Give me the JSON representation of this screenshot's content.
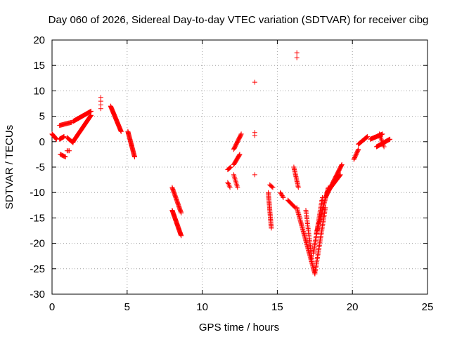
{
  "chart_data": {
    "type": "scatter",
    "title": "Day 060 of 2026, Sidereal Day-to-day VTEC variation (SDTVAR) for receiver cibg",
    "xlabel": "GPS time / hours",
    "ylabel": "SDTVAR / TECUs",
    "xlim": [
      0,
      25
    ],
    "ylim": [
      -30,
      20
    ],
    "xticks": [
      "0",
      "5",
      "10",
      "15",
      "20",
      "25"
    ],
    "yticks": [
      "-30",
      "-25",
      "-20",
      "-15",
      "-10",
      "-5",
      "0",
      "5",
      "10",
      "15",
      "20"
    ],
    "grid": true,
    "marker": "+",
    "color": "#ff0000",
    "segments": [
      {
        "x0": 0.0,
        "y0": 1.5,
        "x1": 0.3,
        "y1": 0.5,
        "n": 18
      },
      {
        "x0": 0.5,
        "y0": 0.5,
        "x1": 0.8,
        "y1": 1.0,
        "n": 12
      },
      {
        "x0": 0.5,
        "y0": 3.2,
        "x1": 1.3,
        "y1": 3.8,
        "n": 18
      },
      {
        "x0": 0.55,
        "y0": -2.5,
        "x1": 0.9,
        "y1": -3.0,
        "n": 8
      },
      {
        "x0": 1.0,
        "y0": 0.8,
        "x1": 1.4,
        "y1": -0.2,
        "n": 10
      },
      {
        "x0": 1.0,
        "y0": -1.8,
        "x1": 1.15,
        "y1": -1.8,
        "n": 3
      },
      {
        "x0": 1.4,
        "y0": 0.0,
        "x1": 2.6,
        "y1": 5.2,
        "n": 55
      },
      {
        "x0": 1.4,
        "y0": 4.0,
        "x1": 2.6,
        "y1": 6.0,
        "n": 45
      },
      {
        "x0": 3.25,
        "y0": 6.5,
        "x1": 3.25,
        "y1": 8.7,
        "n": 4
      },
      {
        "x0": 3.9,
        "y0": 7.0,
        "x1": 4.6,
        "y1": 2.0,
        "n": 45
      },
      {
        "x0": 5.05,
        "y0": 2.0,
        "x1": 5.5,
        "y1": -3.0,
        "n": 35
      },
      {
        "x0": 8.0,
        "y0": -9.0,
        "x1": 8.6,
        "y1": -14.0,
        "n": 30
      },
      {
        "x0": 8.0,
        "y0": -13.5,
        "x1": 8.6,
        "y1": -18.5,
        "n": 40
      },
      {
        "x0": 11.7,
        "y0": -5.5,
        "x1": 11.9,
        "y1": -5.0,
        "n": 6
      },
      {
        "x0": 11.7,
        "y0": -8.0,
        "x1": 11.85,
        "y1": -9.0,
        "n": 5
      },
      {
        "x0": 12.1,
        "y0": -1.5,
        "x1": 12.6,
        "y1": 1.5,
        "n": 20
      },
      {
        "x0": 12.1,
        "y0": -4.5,
        "x1": 12.5,
        "y1": -2.5,
        "n": 15
      },
      {
        "x0": 12.1,
        "y0": -6.5,
        "x1": 12.35,
        "y1": -9.0,
        "n": 10
      },
      {
        "x0": 13.5,
        "y0": 11.7,
        "x1": 13.5,
        "y1": 11.7,
        "n": 1
      },
      {
        "x0": 13.5,
        "y0": 1.2,
        "x1": 13.5,
        "y1": 1.8,
        "n": 2
      },
      {
        "x0": 13.5,
        "y0": -6.5,
        "x1": 13.5,
        "y1": -6.5,
        "n": 1
      },
      {
        "x0": 14.4,
        "y0": -10.0,
        "x1": 14.6,
        "y1": -17.0,
        "n": 30
      },
      {
        "x0": 14.5,
        "y0": -8.5,
        "x1": 14.7,
        "y1": -9.0,
        "n": 5
      },
      {
        "x0": 15.2,
        "y0": -10.0,
        "x1": 15.4,
        "y1": -11.0,
        "n": 6
      },
      {
        "x0": 15.7,
        "y0": -11.5,
        "x1": 16.2,
        "y1": -13.0,
        "n": 12
      },
      {
        "x0": 16.1,
        "y0": -5.0,
        "x1": 16.4,
        "y1": -9.0,
        "n": 18
      },
      {
        "x0": 16.3,
        "y0": 17.5,
        "x1": 16.3,
        "y1": 16.5,
        "n": 2
      },
      {
        "x0": 16.3,
        "y0": -13.0,
        "x1": 17.5,
        "y1": -26.0,
        "n": 60
      },
      {
        "x0": 16.9,
        "y0": -13.5,
        "x1": 17.3,
        "y1": -23.0,
        "n": 30
      },
      {
        "x0": 17.5,
        "y0": -26.0,
        "x1": 18.2,
        "y1": -13.0,
        "n": 45
      },
      {
        "x0": 17.4,
        "y0": -22.0,
        "x1": 18.0,
        "y1": -11.0,
        "n": 40
      },
      {
        "x0": 17.6,
        "y0": -18.0,
        "x1": 18.4,
        "y1": -9.0,
        "n": 40
      },
      {
        "x0": 18.2,
        "y0": -11.0,
        "x1": 19.3,
        "y1": -4.5,
        "n": 45
      },
      {
        "x0": 18.3,
        "y0": -10.0,
        "x1": 19.2,
        "y1": -6.5,
        "n": 30
      },
      {
        "x0": 20.1,
        "y0": -3.5,
        "x1": 20.4,
        "y1": -1.5,
        "n": 12
      },
      {
        "x0": 20.4,
        "y0": -0.5,
        "x1": 21.0,
        "y1": 1.0,
        "n": 20
      },
      {
        "x0": 21.2,
        "y0": 0.5,
        "x1": 22.0,
        "y1": 1.5,
        "n": 25
      },
      {
        "x0": 21.6,
        "y0": -1.0,
        "x1": 22.5,
        "y1": 0.5,
        "n": 25
      },
      {
        "x0": 21.8,
        "y0": 1.5,
        "x1": 22.1,
        "y1": -1.0,
        "n": 10
      }
    ]
  }
}
